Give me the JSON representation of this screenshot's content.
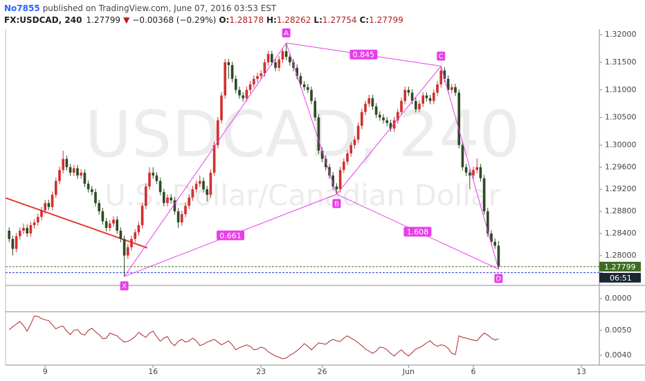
{
  "header": {
    "publisher": "No7855",
    "published": "published on TradingView.com, June 07, 2016 03:53 EST",
    "symbol": "FX:USDCAD, 240",
    "arrow": "▼",
    "change": "−0.00368 (−0.29%)",
    "o_label": "O:",
    "h_label": "H:",
    "l_label": "L:",
    "c_label": "C:"
  },
  "chart_data": {
    "type": "candlestick",
    "watermark": "USDCAD, 240",
    "watermark_subtitle": "U.S. Dollar/Canadian Dollar",
    "up_color": "#d32f2f",
    "down_color": "#2e4a26",
    "grid": false,
    "xlim": [
      -1,
      164
    ],
    "xticks": [
      {
        "value": 10,
        "label": "9"
      },
      {
        "value": 40,
        "label": "16"
      },
      {
        "value": 70,
        "label": "23"
      },
      {
        "value": 87,
        "label": "26"
      },
      {
        "value": 111,
        "label": "Jun"
      },
      {
        "value": 129,
        "label": "6"
      },
      {
        "value": 159,
        "label": "13"
      }
    ],
    "ylim": [
      1.27459,
      1.32101
    ],
    "yticks": [
      {
        "value": 1.32,
        "label": "1.32000"
      },
      {
        "value": 1.315,
        "label": "1.31500"
      },
      {
        "value": 1.31,
        "label": "1.31000"
      },
      {
        "value": 1.305,
        "label": "1.30500"
      },
      {
        "value": 1.3,
        "label": "1.30000"
      },
      {
        "value": 1.296,
        "label": "1.29600"
      },
      {
        "value": 1.292,
        "label": "1.29200"
      },
      {
        "value": 1.288,
        "label": "1.28800"
      },
      {
        "value": 1.284,
        "label": "1.28400"
      },
      {
        "value": 1.28,
        "label": "1.28000"
      }
    ],
    "ohlc": [
      [
        1.2845,
        1.2851,
        1.2824,
        1.283
      ],
      [
        1.283,
        1.2836,
        1.28,
        1.2812
      ],
      [
        1.2812,
        1.2841,
        1.2806,
        1.2835
      ],
      [
        1.2835,
        1.2851,
        1.2829,
        1.2845
      ],
      [
        1.2845,
        1.2858,
        1.2839,
        1.285
      ],
      [
        1.285,
        1.2856,
        1.2834,
        1.284
      ],
      [
        1.284,
        1.2861,
        1.2834,
        1.2855
      ],
      [
        1.2855,
        1.2866,
        1.2849,
        1.286
      ],
      [
        1.286,
        1.2876,
        1.2854,
        1.287
      ],
      [
        1.287,
        1.2888,
        1.2864,
        1.2882
      ],
      [
        1.2882,
        1.2901,
        1.2876,
        1.2895
      ],
      [
        1.2895,
        1.2901,
        1.2882,
        1.2888
      ],
      [
        1.2888,
        1.2916,
        1.2882,
        1.291
      ],
      [
        1.291,
        1.2941,
        1.2904,
        1.2935
      ],
      [
        1.2935,
        1.2961,
        1.2929,
        1.2955
      ],
      [
        1.2955,
        1.299,
        1.2949,
        1.2975
      ],
      [
        1.2975,
        1.2981,
        1.2954,
        1.296
      ],
      [
        1.296,
        1.2966,
        1.2944,
        1.295
      ],
      [
        1.295,
        1.2964,
        1.2944,
        1.2958
      ],
      [
        1.2958,
        1.2964,
        1.2939,
        1.2945
      ],
      [
        1.2945,
        1.2956,
        1.2939,
        1.295
      ],
      [
        1.295,
        1.2956,
        1.2924,
        1.293
      ],
      [
        1.293,
        1.2936,
        1.2914,
        1.292
      ],
      [
        1.292,
        1.2926,
        1.2909,
        1.2915
      ],
      [
        1.2915,
        1.2921,
        1.2889,
        1.2895
      ],
      [
        1.2895,
        1.2901,
        1.2874,
        1.288
      ],
      [
        1.288,
        1.2886,
        1.2856,
        1.2862
      ],
      [
        1.2862,
        1.2868,
        1.2844,
        1.285
      ],
      [
        1.285,
        1.2864,
        1.2844,
        1.2858
      ],
      [
        1.2858,
        1.2871,
        1.2852,
        1.2865
      ],
      [
        1.2865,
        1.2871,
        1.2839,
        1.2845
      ],
      [
        1.2845,
        1.2851,
        1.2824,
        1.283
      ],
      [
        1.283,
        1.2836,
        1.2762,
        1.28
      ],
      [
        1.28,
        1.2821,
        1.2794,
        1.2815
      ],
      [
        1.2815,
        1.2836,
        1.2809,
        1.283
      ],
      [
        1.283,
        1.2848,
        1.2824,
        1.2842
      ],
      [
        1.2842,
        1.2861,
        1.2836,
        1.2855
      ],
      [
        1.2855,
        1.2896,
        1.2849,
        1.289
      ],
      [
        1.289,
        1.2931,
        1.2884,
        1.2925
      ],
      [
        1.2925,
        1.296,
        1.2919,
        1.295
      ],
      [
        1.295,
        1.296,
        1.2939,
        1.2945
      ],
      [
        1.2945,
        1.2951,
        1.2929,
        1.2935
      ],
      [
        1.2935,
        1.2941,
        1.2909,
        1.2915
      ],
      [
        1.2915,
        1.2921,
        1.2889,
        1.2895
      ],
      [
        1.2895,
        1.2911,
        1.2889,
        1.2905
      ],
      [
        1.2905,
        1.2911,
        1.2894,
        1.29
      ],
      [
        1.29,
        1.2906,
        1.2874,
        1.288
      ],
      [
        1.288,
        1.2886,
        1.285,
        1.286
      ],
      [
        1.286,
        1.2881,
        1.2854,
        1.2875
      ],
      [
        1.2875,
        1.2896,
        1.2869,
        1.289
      ],
      [
        1.289,
        1.2911,
        1.2884,
        1.2905
      ],
      [
        1.2905,
        1.2926,
        1.2899,
        1.292
      ],
      [
        1.292,
        1.2936,
        1.2914,
        1.293
      ],
      [
        1.293,
        1.2945,
        1.2924,
        1.2935
      ],
      [
        1.2935,
        1.2941,
        1.2914,
        1.292
      ],
      [
        1.292,
        1.2926,
        1.2898,
        1.291
      ],
      [
        1.291,
        1.2956,
        1.2904,
        1.295
      ],
      [
        1.295,
        1.3006,
        1.2944,
        1.3
      ],
      [
        1.3,
        1.3051,
        1.2994,
        1.3045
      ],
      [
        1.3045,
        1.3096,
        1.3039,
        1.309
      ],
      [
        1.309,
        1.3156,
        1.3084,
        1.315
      ],
      [
        1.315,
        1.3156,
        1.312,
        1.3145
      ],
      [
        1.3145,
        1.3151,
        1.3114,
        1.312
      ],
      [
        1.312,
        1.3126,
        1.3094,
        1.31
      ],
      [
        1.31,
        1.3106,
        1.3084,
        1.309
      ],
      [
        1.309,
        1.3096,
        1.3079,
        1.3085
      ],
      [
        1.3085,
        1.3106,
        1.3079,
        1.31
      ],
      [
        1.31,
        1.3116,
        1.3094,
        1.311
      ],
      [
        1.311,
        1.3126,
        1.3104,
        1.312
      ],
      [
        1.312,
        1.3131,
        1.3114,
        1.3125
      ],
      [
        1.3125,
        1.3136,
        1.3119,
        1.313
      ],
      [
        1.313,
        1.3156,
        1.3124,
        1.315
      ],
      [
        1.315,
        1.3171,
        1.3144,
        1.3165
      ],
      [
        1.3165,
        1.3171,
        1.3144,
        1.315
      ],
      [
        1.315,
        1.3156,
        1.3134,
        1.314
      ],
      [
        1.314,
        1.3161,
        1.3134,
        1.3155
      ],
      [
        1.3155,
        1.3176,
        1.3149,
        1.317
      ],
      [
        1.317,
        1.3185,
        1.3154,
        1.316
      ],
      [
        1.316,
        1.3166,
        1.3144,
        1.315
      ],
      [
        1.315,
        1.3156,
        1.3134,
        1.314
      ],
      [
        1.314,
        1.3146,
        1.3119,
        1.3125
      ],
      [
        1.3125,
        1.3131,
        1.3104,
        1.311
      ],
      [
        1.311,
        1.3116,
        1.3099,
        1.3105
      ],
      [
        1.3105,
        1.3111,
        1.3094,
        1.31
      ],
      [
        1.31,
        1.3106,
        1.3074,
        1.308
      ],
      [
        1.308,
        1.3086,
        1.3044,
        1.305
      ],
      [
        1.305,
        1.3056,
        1.2984,
        1.299
      ],
      [
        1.299,
        1.2996,
        1.2969,
        1.2975
      ],
      [
        1.2975,
        1.2981,
        1.2954,
        1.296
      ],
      [
        1.296,
        1.2966,
        1.2939,
        1.2945
      ],
      [
        1.2945,
        1.2951,
        1.2919,
        1.2925
      ],
      [
        1.2925,
        1.2931,
        1.2911,
        1.292
      ],
      [
        1.292,
        1.2961,
        1.2914,
        1.2955
      ],
      [
        1.2955,
        1.2976,
        1.2949,
        1.297
      ],
      [
        1.297,
        1.2991,
        1.2964,
        1.2985
      ],
      [
        1.2985,
        1.3006,
        1.2979,
        1.3
      ],
      [
        1.3,
        1.3016,
        1.2994,
        1.301
      ],
      [
        1.301,
        1.3041,
        1.3004,
        1.3035
      ],
      [
        1.3035,
        1.3066,
        1.3029,
        1.306
      ],
      [
        1.306,
        1.3081,
        1.3054,
        1.3075
      ],
      [
        1.3075,
        1.3091,
        1.3069,
        1.3085
      ],
      [
        1.3085,
        1.3091,
        1.3064,
        1.307
      ],
      [
        1.307,
        1.3076,
        1.3049,
        1.3055
      ],
      [
        1.3055,
        1.3061,
        1.3044,
        1.305
      ],
      [
        1.305,
        1.3056,
        1.3039,
        1.3045
      ],
      [
        1.3045,
        1.3051,
        1.3034,
        1.304
      ],
      [
        1.304,
        1.3046,
        1.3024,
        1.303
      ],
      [
        1.303,
        1.3051,
        1.3024,
        1.3045
      ],
      [
        1.3045,
        1.3066,
        1.3039,
        1.306
      ],
      [
        1.306,
        1.3086,
        1.3054,
        1.308
      ],
      [
        1.308,
        1.3106,
        1.3074,
        1.31
      ],
      [
        1.31,
        1.3106,
        1.3089,
        1.3095
      ],
      [
        1.3095,
        1.3101,
        1.3074,
        1.308
      ],
      [
        1.308,
        1.3086,
        1.3059,
        1.3065
      ],
      [
        1.3065,
        1.3081,
        1.3059,
        1.3075
      ],
      [
        1.3075,
        1.3096,
        1.3069,
        1.309
      ],
      [
        1.309,
        1.3096,
        1.3079,
        1.3085
      ],
      [
        1.3085,
        1.3091,
        1.3074,
        1.308
      ],
      [
        1.308,
        1.3101,
        1.3074,
        1.3095
      ],
      [
        1.3095,
        1.3116,
        1.3089,
        1.311
      ],
      [
        1.311,
        1.3143,
        1.3104,
        1.3135
      ],
      [
        1.3135,
        1.3141,
        1.3114,
        1.312
      ],
      [
        1.312,
        1.3126,
        1.3094,
        1.31
      ],
      [
        1.31,
        1.3111,
        1.3094,
        1.3105
      ],
      [
        1.3105,
        1.3111,
        1.3089,
        1.3095
      ],
      [
        1.3095,
        1.3101,
        1.2994,
        1.3
      ],
      [
        1.3,
        1.3006,
        1.2954,
        1.296
      ],
      [
        1.296,
        1.2966,
        1.2944,
        1.295
      ],
      [
        1.295,
        1.2956,
        1.292,
        1.2945
      ],
      [
        1.2945,
        1.2961,
        1.2939,
        1.2955
      ],
      [
        1.2955,
        1.2976,
        1.2949,
        1.296
      ],
      [
        1.296,
        1.2966,
        1.2934,
        1.294
      ],
      [
        1.294,
        1.2946,
        1.2874,
        1.288
      ],
      [
        1.288,
        1.2886,
        1.2834,
        1.284
      ],
      [
        1.284,
        1.2846,
        1.2819,
        1.2825
      ],
      [
        1.2825,
        1.2831,
        1.2812,
        1.28178
      ],
      [
        1.28178,
        1.28262,
        1.27754,
        1.27799
      ]
    ],
    "hline": {
      "value": 1.2769,
      "color": "#2030e0"
    },
    "trendline": {
      "x": [
        -1,
        38.4
      ],
      "y": [
        1.29044,
        1.28138
      ],
      "color": "#e53935"
    },
    "pattern": {
      "color": "#e83ee8",
      "points": [
        {
          "label": "X",
          "x": 32,
          "y": 1.2762
        },
        {
          "label": "A",
          "x": 77,
          "y": 1.3185
        },
        {
          "label": "B",
          "x": 91,
          "y": 1.2911
        },
        {
          "label": "C",
          "x": 120,
          "y": 1.3143
        },
        {
          "label": "D",
          "x": 136,
          "y": 1.27754
        }
      ],
      "ratios": {
        "XB": 0.661,
        "AC": 0.845,
        "BD": 1.608
      }
    },
    "countdown": "06:51",
    "volume_panel": {
      "ylim": [
        -0.0001,
        0.0001
      ],
      "yticks": [
        {
          "value": 0,
          "label": "0.0000"
        }
      ]
    },
    "indicator": {
      "color": "#a52a2a",
      "ylim": [
        0.00361,
        0.00569
      ],
      "yticks": [
        {
          "value": 0.005,
          "label": "0.0050"
        },
        {
          "value": 0.004,
          "label": "0.0040"
        }
      ],
      "values": [
        0.00503,
        0.00514,
        0.00525,
        0.00536,
        0.00519,
        0.00497,
        0.00525,
        0.00558,
        0.00556,
        0.00547,
        0.00542,
        0.00539,
        0.00522,
        0.00506,
        0.00514,
        0.00517,
        0.00497,
        0.00483,
        0.005,
        0.00503,
        0.00486,
        0.00481,
        0.005,
        0.00508,
        0.00494,
        0.00483,
        0.00467,
        0.00469,
        0.00489,
        0.00483,
        0.00478,
        0.00464,
        0.00453,
        0.00456,
        0.00464,
        0.00475,
        0.00492,
        0.00481,
        0.00472,
        0.00489,
        0.00497,
        0.00475,
        0.00456,
        0.00469,
        0.00475,
        0.0045,
        0.00439,
        0.00456,
        0.00464,
        0.00453,
        0.00458,
        0.00469,
        0.00458,
        0.00439,
        0.00444,
        0.00453,
        0.00458,
        0.00464,
        0.00453,
        0.00442,
        0.0045,
        0.00458,
        0.00442,
        0.00422,
        0.00431,
        0.00436,
        0.00442,
        0.00436,
        0.00422,
        0.00425,
        0.00433,
        0.00428,
        0.00414,
        0.00406,
        0.00397,
        0.00392,
        0.00386,
        0.00389,
        0.004,
        0.00408,
        0.00419,
        0.00431,
        0.00447,
        0.00436,
        0.00422,
        0.00436,
        0.0045,
        0.00447,
        0.00444,
        0.00456,
        0.00464,
        0.00458,
        0.00456,
        0.00469,
        0.00478,
        0.00469,
        0.00461,
        0.0045,
        0.00439,
        0.00425,
        0.00417,
        0.00408,
        0.00417,
        0.00433,
        0.00431,
        0.00422,
        0.00408,
        0.00397,
        0.00411,
        0.00422,
        0.00408,
        0.00397,
        0.00411,
        0.00425,
        0.00431,
        0.00439,
        0.0045,
        0.00458,
        0.00444,
        0.00436,
        0.00442,
        0.00439,
        0.00428,
        0.00408,
        0.00403,
        0.00478,
        0.00472,
        0.00469,
        0.00464,
        0.00461,
        0.00458,
        0.00475,
        0.00489,
        0.00481,
        0.00469,
        0.00461,
        0.00467
      ]
    }
  }
}
